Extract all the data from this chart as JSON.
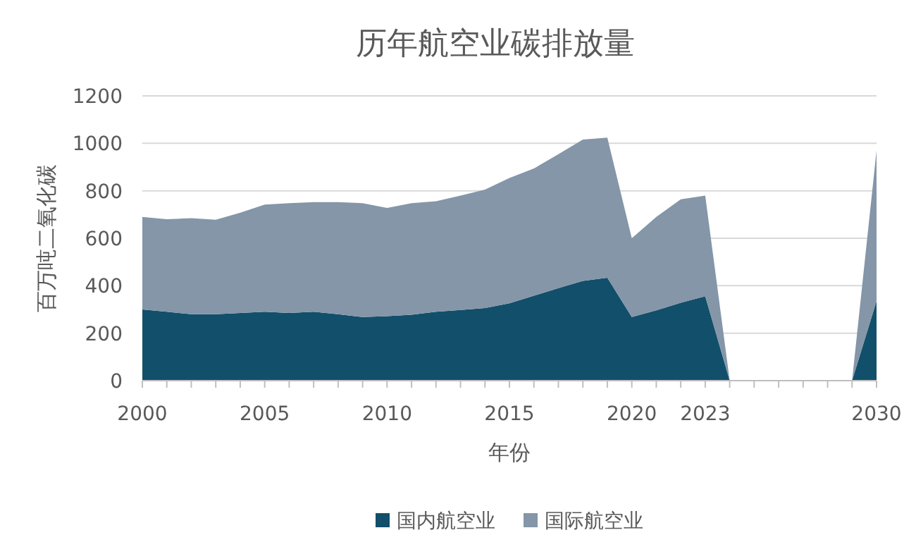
{
  "chart_data": {
    "type": "area",
    "title": "历年航空业碳排放量",
    "xlabel": "年份",
    "ylabel": "百万吨二氧化碳",
    "stacked": true,
    "x": [
      2000,
      2001,
      2002,
      2003,
      2004,
      2005,
      2006,
      2007,
      2008,
      2009,
      2010,
      2011,
      2012,
      2013,
      2014,
      2015,
      2016,
      2017,
      2018,
      2019,
      2020,
      2021,
      2022,
      2023,
      2024,
      2025,
      2026,
      2027,
      2028,
      2029,
      2030
    ],
    "series": [
      {
        "name": "国内航空业",
        "color": "#124f6b",
        "values": [
          300,
          290,
          280,
          280,
          285,
          290,
          285,
          290,
          280,
          268,
          272,
          278,
          290,
          298,
          306,
          326,
          358,
          390,
          420,
          434,
          268,
          296,
          328,
          356,
          0,
          0,
          0,
          0,
          0,
          0,
          336
        ]
      },
      {
        "name": "国际航空业",
        "color": "#8496a8",
        "values": [
          390,
          390,
          405,
          398,
          423,
          452,
          463,
          462,
          472,
          480,
          456,
          470,
          466,
          482,
          499,
          528,
          536,
          564,
          596,
          590,
          332,
          394,
          436,
          424,
          0,
          0,
          0,
          0,
          0,
          0,
          634
        ]
      }
    ],
    "xlim": [
      2000,
      2030
    ],
    "ylim": [
      0,
      1200
    ],
    "xticks": [
      2000,
      {
        "value": 2001,
        "label": null
      },
      {
        "value": 2002,
        "label": null
      },
      {
        "value": 2003,
        "label": null
      },
      {
        "value": 2004,
        "label": null
      },
      2005,
      {
        "value": 2006,
        "label": null
      },
      {
        "value": 2007,
        "label": null
      },
      {
        "value": 2008,
        "label": null
      },
      {
        "value": 2009,
        "label": null
      },
      2010,
      {
        "value": 2011,
        "label": null
      },
      {
        "value": 2012,
        "label": null
      },
      {
        "value": 2013,
        "label": null
      },
      {
        "value": 2014,
        "label": null
      },
      2015,
      {
        "value": 2016,
        "label": null
      },
      {
        "value": 2017,
        "label": null
      },
      {
        "value": 2018,
        "label": null
      },
      {
        "value": 2019,
        "label": null
      },
      2020,
      {
        "value": 2021,
        "label": null
      },
      {
        "value": 2022,
        "label": null
      },
      2023,
      {
        "value": 2024,
        "label": null
      },
      {
        "value": 2025,
        "label": null
      },
      {
        "value": 2026,
        "label": null
      },
      {
        "value": 2027,
        "label": null
      },
      {
        "value": 2028,
        "label": null
      },
      {
        "value": 2029,
        "label": null
      },
      2030
    ],
    "yticks": [
      0,
      200,
      400,
      600,
      800,
      1000,
      1200
    ],
    "grid": "y",
    "legend": "bottom"
  }
}
